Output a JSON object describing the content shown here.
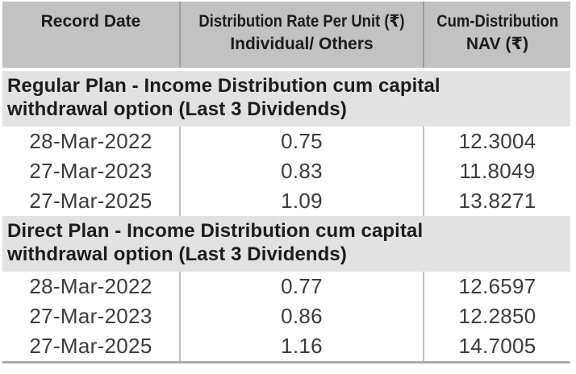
{
  "table": {
    "header": {
      "record_date": "Record Date",
      "rate_line1": "Distribution Rate Per Unit (₹)",
      "rate_line2": "Individual/ Others",
      "nav_line1": "Cum-Distribution",
      "nav_line2": "NAV (₹)"
    },
    "sections": [
      {
        "title": "Regular Plan - Income Distribution cum capital withdrawal option (Last 3 Dividends)",
        "rows": [
          {
            "record_date": "28-Mar-2022",
            "rate": "0.75",
            "nav": "12.3004"
          },
          {
            "record_date": "27-Mar-2023",
            "rate": "0.83",
            "nav": "11.8049"
          },
          {
            "record_date": "27-Mar-2025",
            "rate": "1.09",
            "nav": "13.8271"
          }
        ]
      },
      {
        "title": "Direct Plan - Income Distribution cum capital withdrawal option (Last 3 Dividends)",
        "rows": [
          {
            "record_date": "28-Mar-2022",
            "rate": "0.77",
            "nav": "12.6597"
          },
          {
            "record_date": "27-Mar-2023",
            "rate": "0.86",
            "nav": "12.2850"
          },
          {
            "record_date": "27-Mar-2025",
            "rate": "1.16",
            "nav": "14.7005"
          }
        ]
      }
    ]
  },
  "colors": {
    "header_bg": "#c2c2c2",
    "section_bg": "#e2e2e2",
    "text": "#1c1c1c",
    "header_divider": "#9a9a9a",
    "body_divider": "#bdbdbd",
    "bottom_border": "#ababab"
  }
}
